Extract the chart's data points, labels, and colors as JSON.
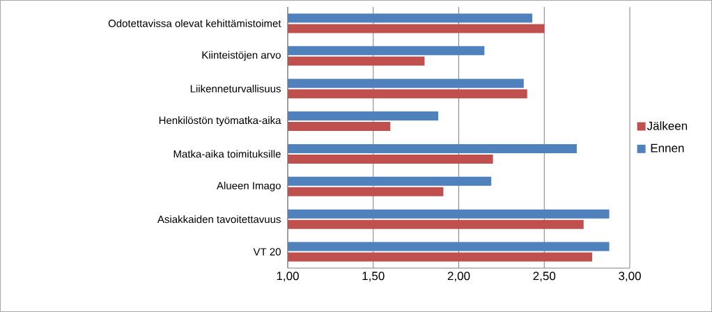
{
  "chart_data": {
    "type": "bar",
    "orientation": "horizontal",
    "categories": [
      "Odotettavissa olevat kehittämistoimet",
      "Kiinteistöjen arvo",
      "Liikenneturvallisuus",
      "Henkilöstön työmatka-aika",
      "Matka-aika toimituksille",
      "Alueen Imago",
      "Asiakkaiden tavoitettavuus",
      "VT 20"
    ],
    "series": [
      {
        "name": "Jälkeen",
        "color": "#c0504d",
        "values": [
          2.5,
          1.8,
          2.4,
          1.6,
          2.2,
          1.91,
          2.73,
          2.78
        ]
      },
      {
        "name": "Ennen",
        "color": "#4f81bd",
        "values": [
          2.43,
          2.15,
          2.38,
          1.88,
          2.69,
          2.19,
          2.88,
          2.88
        ]
      }
    ],
    "xlim": [
      1,
      3
    ],
    "xticks": [
      {
        "value": 1,
        "label": "1,00"
      },
      {
        "value": 1.5,
        "label": "1,50"
      },
      {
        "value": 2,
        "label": "2,00"
      },
      {
        "value": 2.5,
        "label": "2,50"
      },
      {
        "value": 3,
        "label": "3,00"
      }
    ],
    "grid": "x",
    "legend": "right"
  }
}
